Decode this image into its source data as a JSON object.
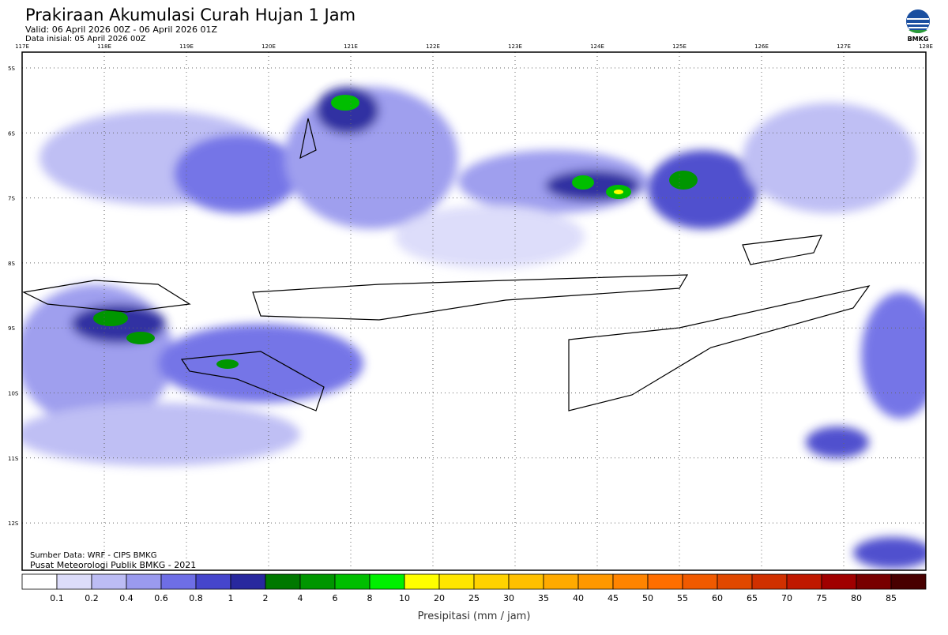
{
  "header": {
    "title": "Prakiraan Akumulasi Curah Hujan 1 Jam",
    "valid": "Valid: 06 April 2026 00Z - 06 April 2026 01Z",
    "init": "Data inisial: 05 April 2026 00Z",
    "logo": "BMKG"
  },
  "map": {
    "lon_labels": [
      "117E",
      "118E",
      "119E",
      "120E",
      "121E",
      "122E",
      "123E",
      "124E",
      "125E",
      "126E",
      "127E",
      "128E"
    ],
    "lat_labels": [
      "5S",
      "6S",
      "7S",
      "8S",
      "9S",
      "10S",
      "11S",
      "12S"
    ],
    "source": "Sumber Data: WRF - CIPS BMKG",
    "credit": "Pusat Meteorologi Publik BMKG - 2021"
  },
  "legend": {
    "colors": [
      "#ffffff",
      "#dcdcfa",
      "#bcbcf4",
      "#9a9aee",
      "#6e6ee6",
      "#4646cc",
      "#28289e",
      "#007800",
      "#009600",
      "#00be00",
      "#00f000",
      "#ffff00",
      "#ffe600",
      "#ffd200",
      "#ffc000",
      "#ffaa00",
      "#ff9800",
      "#ff8400",
      "#ff6e00",
      "#f05a00",
      "#e04800",
      "#d03000",
      "#c01800",
      "#a00000",
      "#780000",
      "#480000"
    ],
    "labels": [
      "0.1",
      "0.2",
      "0.4",
      "0.6",
      "0.8",
      "1",
      "2",
      "4",
      "6",
      "8",
      "10",
      "20",
      "25",
      "30",
      "35",
      "40",
      "45",
      "50",
      "55",
      "60",
      "65",
      "70",
      "75",
      "80",
      "85"
    ],
    "title": "Presipitasi (mm / jam)"
  }
}
